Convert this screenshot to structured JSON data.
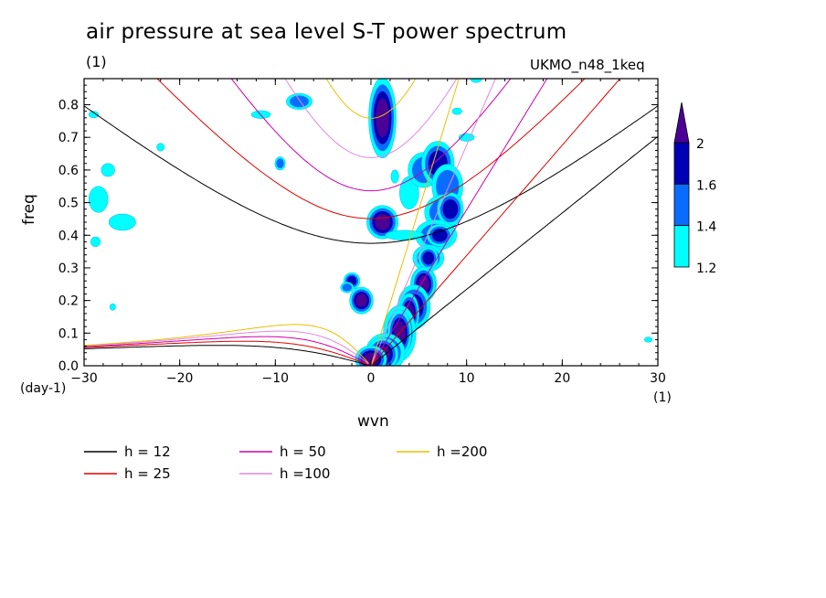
{
  "chart_data": {
    "type": "heatmap",
    "title": "air pressure at sea level S-T power spectrum",
    "title_units": "(1)",
    "model": "UKMO_n48_1keq",
    "xlabel": "wvn",
    "ylabel": "freq",
    "x_left_unit": "(day-1)",
    "x_right_unit": "(1)",
    "xlim": [
      -30,
      30
    ],
    "ylim": [
      0,
      0.88
    ],
    "x_ticks": [
      "-30",
      "-20",
      "-10",
      "0",
      "10",
      "20",
      "30"
    ],
    "y_ticks": [
      "0.0",
      "0.1",
      "0.2",
      "0.3",
      "0.4",
      "0.5",
      "0.6",
      "0.7",
      "0.8"
    ],
    "colorbar": {
      "levels": [
        "1.2",
        "1.4",
        "1.6",
        "2"
      ],
      "colors": [
        "#00ffff",
        "#0a6cff",
        "#0000b4",
        "#4b0096"
      ]
    },
    "dispersion_curves": [
      {
        "label": "h = 12",
        "h": 12,
        "color": "#000000"
      },
      {
        "label": "h = 25",
        "h": 25,
        "color": "#e00000"
      },
      {
        "label": "h = 50",
        "h": 50,
        "color": "#cc00aa"
      },
      {
        "label": "h =100",
        "h": 100,
        "color": "#e088e0"
      },
      {
        "label": "h =200",
        "h": 200,
        "color": "#e8c000"
      }
    ],
    "spectral_blobs": [
      {
        "x": 1.2,
        "y": 0.76,
        "rx": 0.7,
        "ry": 0.06,
        "level": 3
      },
      {
        "x": 1.2,
        "y": 0.44,
        "rx": 0.8,
        "ry": 0.025,
        "level": 3
      },
      {
        "x": -2.0,
        "y": 0.26,
        "rx": 0.5,
        "ry": 0.015,
        "level": 2
      },
      {
        "x": -1.0,
        "y": 0.2,
        "rx": 0.6,
        "ry": 0.02,
        "level": 3
      },
      {
        "x": -2.5,
        "y": 0.24,
        "rx": 0.5,
        "ry": 0.012,
        "level": 1
      },
      {
        "x": -7.5,
        "y": 0.81,
        "rx": 1.0,
        "ry": 0.018,
        "level": 1
      },
      {
        "x": -9.5,
        "y": 0.62,
        "rx": 0.4,
        "ry": 0.015,
        "level": 1
      },
      {
        "x": -11.5,
        "y": 0.77,
        "rx": 1.0,
        "ry": 0.012,
        "level": 0
      },
      {
        "x": -28.5,
        "y": 0.51,
        "rx": 1.0,
        "ry": 0.04,
        "level": 0
      },
      {
        "x": -26.0,
        "y": 0.44,
        "rx": 1.4,
        "ry": 0.025,
        "level": 0
      },
      {
        "x": -27.5,
        "y": 0.6,
        "rx": 0.7,
        "ry": 0.02,
        "level": 0
      },
      {
        "x": -28.8,
        "y": 0.38,
        "rx": 0.5,
        "ry": 0.015,
        "level": 0
      },
      {
        "x": -22.0,
        "y": 0.67,
        "rx": 0.4,
        "ry": 0.012,
        "level": 0
      },
      {
        "x": -29.0,
        "y": 0.77,
        "rx": 0.5,
        "ry": 0.01,
        "level": 0
      },
      {
        "x": -27.0,
        "y": 0.18,
        "rx": 0.3,
        "ry": 0.01,
        "level": 0
      },
      {
        "x": 29.0,
        "y": 0.08,
        "rx": 0.4,
        "ry": 0.008,
        "level": 0
      },
      {
        "x": 4.0,
        "y": 0.53,
        "rx": 1.0,
        "ry": 0.05,
        "level": 0
      },
      {
        "x": 5.5,
        "y": 0.6,
        "rx": 1.2,
        "ry": 0.04,
        "level": 1
      },
      {
        "x": 7.0,
        "y": 0.62,
        "rx": 1.0,
        "ry": 0.04,
        "level": 2
      },
      {
        "x": 8.0,
        "y": 0.55,
        "rx": 1.2,
        "ry": 0.05,
        "level": 1
      },
      {
        "x": 7.5,
        "y": 0.47,
        "rx": 1.4,
        "ry": 0.04,
        "level": 1
      },
      {
        "x": 8.3,
        "y": 0.48,
        "rx": 0.8,
        "ry": 0.03,
        "level": 2
      },
      {
        "x": 6.8,
        "y": 0.4,
        "rx": 1.6,
        "ry": 0.035,
        "level": 1
      },
      {
        "x": 7.2,
        "y": 0.4,
        "rx": 0.8,
        "ry": 0.02,
        "level": 2
      },
      {
        "x": 3.5,
        "y": 0.4,
        "rx": 2.0,
        "ry": 0.015,
        "level": 0
      },
      {
        "x": 6.0,
        "y": 0.33,
        "rx": 1.2,
        "ry": 0.03,
        "level": 1
      },
      {
        "x": 6.0,
        "y": 0.33,
        "rx": 0.6,
        "ry": 0.02,
        "level": 2
      },
      {
        "x": 5.5,
        "y": 0.25,
        "rx": 1.0,
        "ry": 0.04,
        "level": 1
      },
      {
        "x": 5.5,
        "y": 0.25,
        "rx": 0.6,
        "ry": 0.025,
        "level": 3
      },
      {
        "x": 4.5,
        "y": 0.18,
        "rx": 1.0,
        "ry": 0.04,
        "level": 2
      },
      {
        "x": 4.0,
        "y": 0.16,
        "rx": 0.5,
        "ry": 0.03,
        "level": 3
      },
      {
        "x": 3.0,
        "y": 0.1,
        "rx": 1.0,
        "ry": 0.05,
        "level": 2
      },
      {
        "x": 3.0,
        "y": 0.1,
        "rx": 0.6,
        "ry": 0.035,
        "level": 3
      },
      {
        "x": 1.5,
        "y": 0.04,
        "rx": 1.2,
        "ry": 0.035,
        "level": 2
      },
      {
        "x": 1.2,
        "y": 0.035,
        "rx": 0.8,
        "ry": 0.025,
        "level": 3
      },
      {
        "x": 0.0,
        "y": 0.02,
        "rx": 0.8,
        "ry": 0.02,
        "level": 3
      },
      {
        "x": 10.0,
        "y": 0.7,
        "rx": 0.8,
        "ry": 0.012,
        "level": 0
      },
      {
        "x": 9.0,
        "y": 0.78,
        "rx": 0.5,
        "ry": 0.01,
        "level": 0
      },
      {
        "x": 11.0,
        "y": 0.88,
        "rx": 0.6,
        "ry": 0.012,
        "level": 0
      },
      {
        "x": 2.5,
        "y": 0.58,
        "rx": 0.4,
        "ry": 0.02,
        "level": 0
      }
    ]
  }
}
